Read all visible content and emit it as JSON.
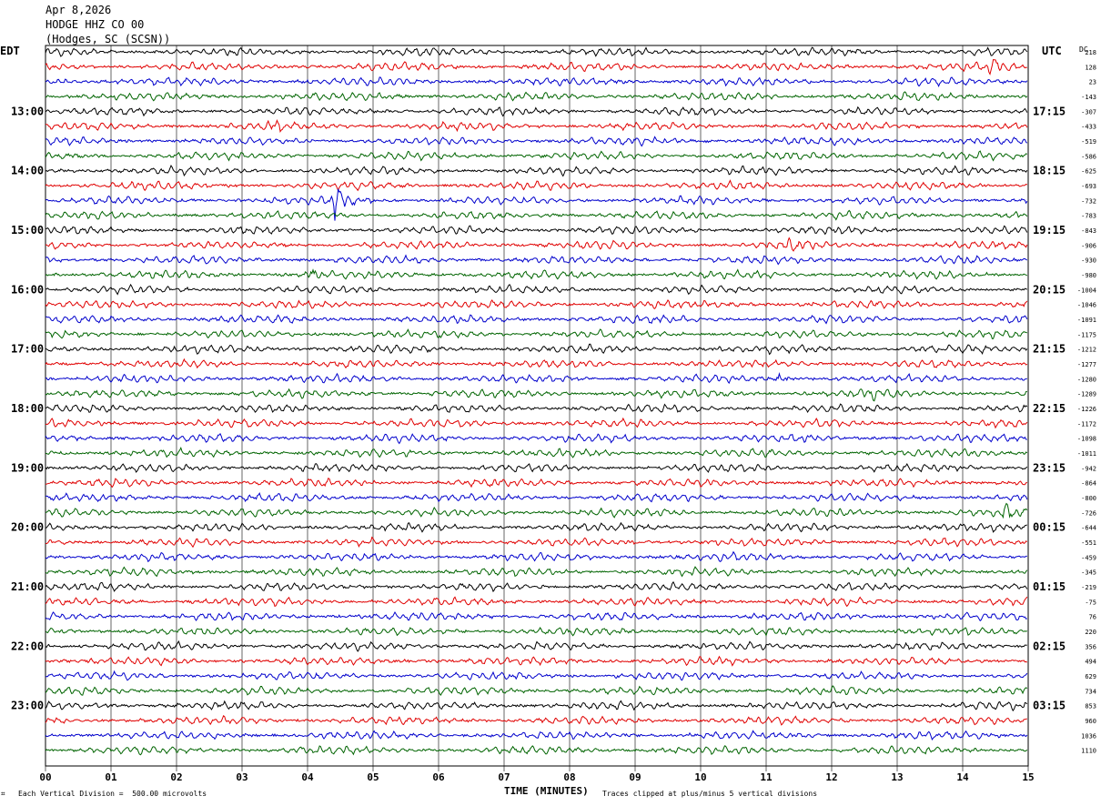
{
  "header": {
    "date": "Apr 8,2026",
    "station": "HODGE HHZ CO 00",
    "location": "(Hodges, SC (SCSN))"
  },
  "left_axis_label": "EDT",
  "right_axis_label": "UTC",
  "dc_label": "DC",
  "footer": {
    "scale_note": "Each Vertical Division =  500.00 microvolts",
    "x_title": "TIME (MINUTES)",
    "clip_note": "Traces clipped at plus/minus 5 vertical divisions",
    "corner_mark": "⌗"
  },
  "colors": {
    "trace_cycle": [
      "#000000",
      "#e00000",
      "#0000cc",
      "#006400"
    ],
    "gridline": "#000000"
  },
  "chart_data": {
    "type": "line",
    "title": "",
    "xlabel": "TIME (MINUTES)",
    "x_ticks": [
      "00",
      "01",
      "02",
      "03",
      "04",
      "05",
      "06",
      "07",
      "08",
      "09",
      "10",
      "11",
      "12",
      "13",
      "14",
      "15"
    ],
    "xlim": [
      0,
      15
    ],
    "left_time_labels": [
      "13:00",
      "14:00",
      "15:00",
      "16:00",
      "17:00",
      "18:00",
      "19:00",
      "20:00",
      "21:00",
      "22:00",
      "23:00"
    ],
    "right_time_labels": [
      "17:15",
      "18:15",
      "19:15",
      "20:15",
      "21:15",
      "22:15",
      "23:15",
      "00:15",
      "01:15",
      "02:15",
      "03:15"
    ],
    "dc_offsets": [
      "218",
      "128",
      "23",
      "-143",
      "-307",
      "-433",
      "-519",
      "-586",
      "-625",
      "-693",
      "-732",
      "-783",
      "-843",
      "-906",
      "-930",
      "-980",
      "-1004",
      "-1046",
      "-1091",
      "-1175",
      "-1212",
      "-1277",
      "-1280",
      "-1289",
      "-1226",
      "-1172",
      "-1098",
      "-1011",
      "-942",
      "-864",
      "-800",
      "-726",
      "-644",
      "-551",
      "-459",
      "-345",
      "-219",
      "-75",
      "76",
      "220",
      "356",
      "494",
      "629",
      "734",
      "853",
      "960",
      "1036",
      "1110"
    ],
    "trace_count": 48,
    "events": [
      {
        "trace": 1,
        "minute": 14.4,
        "amplitude": 2.2
      },
      {
        "trace": 2,
        "minute": 0.2,
        "amplitude": 1.8
      },
      {
        "trace": 5,
        "minute": 3.4,
        "amplitude": 1.6
      },
      {
        "trace": 10,
        "minute": 4.4,
        "amplitude": 4.5
      },
      {
        "trace": 13,
        "minute": 11.3,
        "amplitude": 1.8
      },
      {
        "trace": 15,
        "minute": 4.0,
        "amplitude": 1.3
      },
      {
        "trace": 22,
        "minute": 11.2,
        "amplitude": 1.3
      },
      {
        "trace": 23,
        "minute": 12.5,
        "amplitude": 1.5
      },
      {
        "trace": 31,
        "minute": 14.6,
        "amplitude": 1.6
      }
    ]
  }
}
